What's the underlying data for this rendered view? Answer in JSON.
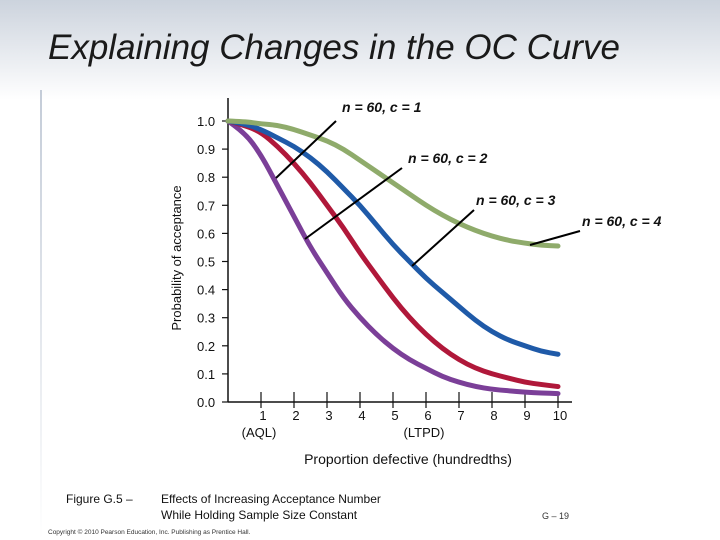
{
  "slide": {
    "title": "Explaining Changes in the OC Curve",
    "caption_figure": "Figure G.5 –",
    "caption_line1": "Effects of Increasing Acceptance Number",
    "caption_line2": "While Holding Sample Size Constant",
    "copyright": "Copyright © 2010 Pearson Education, Inc. Publishing as Prentice Hall.",
    "page_number": "G – 19"
  },
  "chart_data": {
    "type": "line",
    "title": "",
    "xlabel": "Proportion defective (hundredths)",
    "ylabel": "Probability of acceptance",
    "xlim": [
      0,
      10
    ],
    "ylim": [
      0,
      1
    ],
    "x_ticks": [
      1,
      2,
      3,
      4,
      5,
      6,
      7,
      8,
      9,
      10
    ],
    "x_tick_labels": [
      "1",
      "2",
      "3",
      "4",
      "5",
      "6",
      "7",
      "8",
      "9",
      "10"
    ],
    "x_annotations": [
      {
        "x": 1,
        "text": "(AQL)"
      },
      {
        "x": 6,
        "text": "(LTPD)"
      }
    ],
    "y_ticks": [
      0.0,
      0.1,
      0.2,
      0.3,
      0.4,
      0.5,
      0.6,
      0.7,
      0.8,
      0.9,
      1.0
    ],
    "y_tick_labels": [
      "0.0",
      "0.1",
      "0.2",
      "0.3",
      "0.4",
      "0.5",
      "0.6",
      "0.7",
      "0.8",
      "0.9",
      "1.0"
    ],
    "x": [
      0,
      0.5,
      1,
      1.5,
      2,
      2.5,
      3,
      3.5,
      4,
      4.5,
      5,
      5.5,
      6,
      6.5,
      7,
      7.5,
      8,
      8.5,
      9,
      9.5,
      10
    ],
    "series": [
      {
        "name": "n = 60, c = 1",
        "color": "#7b3f98",
        "values": [
          1.0,
          0.96,
          0.88,
          0.77,
          0.66,
          0.55,
          0.46,
          0.37,
          0.3,
          0.24,
          0.19,
          0.15,
          0.12,
          0.09,
          0.07,
          0.055,
          0.045,
          0.04,
          0.035,
          0.032,
          0.03
        ]
      },
      {
        "name": "n = 60, c = 2",
        "color": "#b0183a",
        "values": [
          1.0,
          0.985,
          0.96,
          0.91,
          0.85,
          0.78,
          0.7,
          0.62,
          0.53,
          0.45,
          0.37,
          0.3,
          0.24,
          0.19,
          0.15,
          0.12,
          0.1,
          0.085,
          0.07,
          0.062,
          0.055
        ]
      },
      {
        "name": "n = 60, c = 3",
        "color": "#1f5aa8",
        "values": [
          1.0,
          0.99,
          0.97,
          0.94,
          0.91,
          0.87,
          0.82,
          0.76,
          0.7,
          0.63,
          0.56,
          0.5,
          0.44,
          0.39,
          0.34,
          0.29,
          0.25,
          0.22,
          0.2,
          0.18,
          0.17
        ]
      },
      {
        "name": "n = 60, c = 4",
        "color": "#8fab6b",
        "values": [
          1.0,
          0.998,
          0.99,
          0.985,
          0.97,
          0.95,
          0.93,
          0.9,
          0.86,
          0.82,
          0.78,
          0.74,
          0.7,
          0.665,
          0.635,
          0.61,
          0.59,
          0.575,
          0.565,
          0.558,
          0.555
        ]
      }
    ],
    "annotations": [
      {
        "text": "n = 60, c = 1",
        "points_to": "n = 60, c = 1"
      },
      {
        "text": "n = 60, c = 2",
        "points_to": "n = 60, c = 2"
      },
      {
        "text": "n = 60, c = 3",
        "points_to": "n = 60, c = 3"
      },
      {
        "text": "n = 60, c = 4",
        "points_to": "n = 60, c = 4"
      }
    ]
  }
}
